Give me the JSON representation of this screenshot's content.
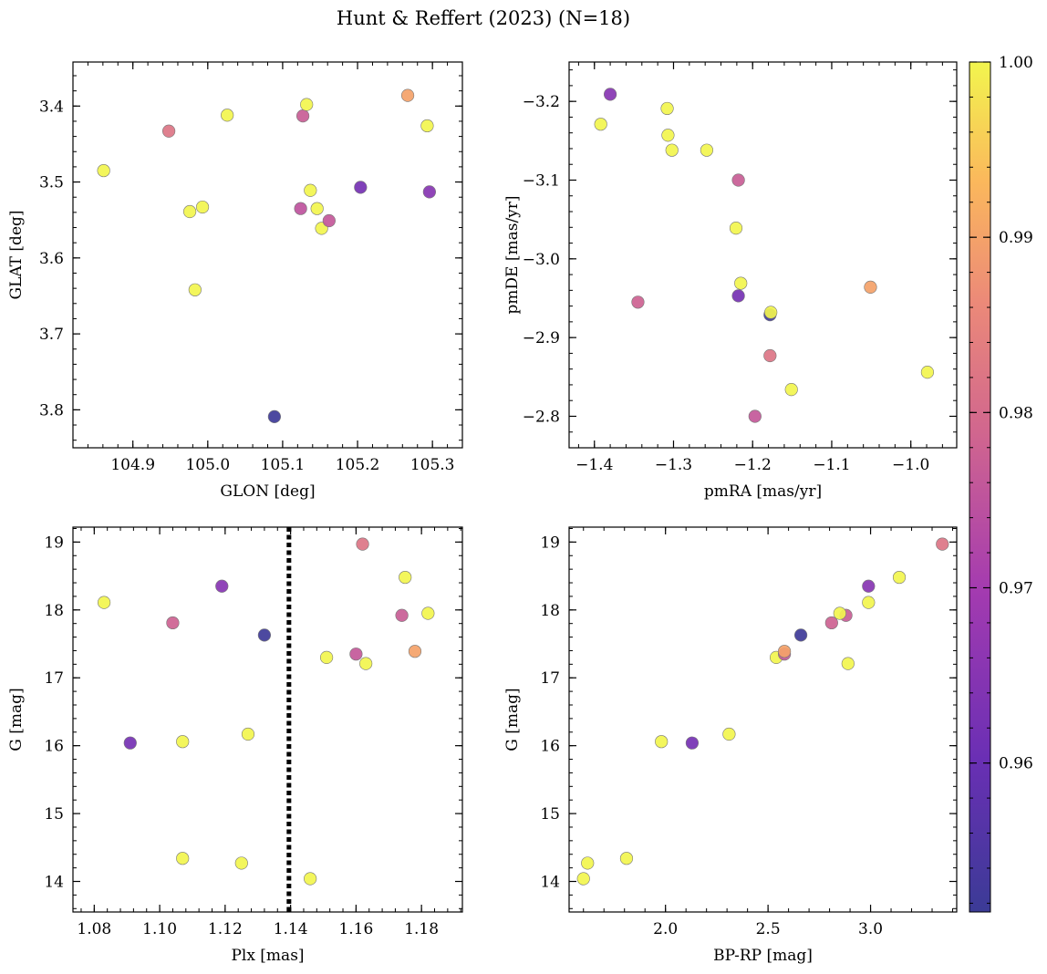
{
  "figure": {
    "title": "Hunt & Reffert (2023) (N=18)"
  },
  "colorbar": {
    "range": [
      0.9515,
      1.0
    ],
    "ticks": [
      0.96,
      0.97,
      0.98,
      0.99,
      1.0
    ],
    "tick_labels": [
      "0.96",
      "0.97",
      "0.98",
      "0.99",
      "1.00"
    ],
    "colormap": "plasma"
  },
  "chart_data": [
    {
      "type": "scatter",
      "xlabel": "GLON [deg]",
      "ylabel": "GLAT [deg]",
      "xlim": [
        104.82,
        105.34
      ],
      "ylim": [
        3.342,
        3.85
      ],
      "xticks": [
        104.9,
        105.0,
        105.1,
        105.2,
        105.3
      ],
      "xtick_labels": [
        "104.9",
        "105.0",
        "105.1",
        "105.2",
        "105.3"
      ],
      "yticks": [
        3.4,
        3.5,
        3.6,
        3.7,
        3.8
      ],
      "ytick_labels": [
        "3.4",
        "3.5",
        "3.6",
        "3.7",
        "3.8"
      ],
      "x_minor_step": 0.02,
      "y_minor_step": 0.02,
      "points": [
        {
          "x": 105.089,
          "y": 3.809,
          "c": 0.952
        },
        {
          "x": 104.983,
          "y": 3.642,
          "c": 1.0
        },
        {
          "x": 105.152,
          "y": 3.561,
          "c": 1.0
        },
        {
          "x": 105.162,
          "y": 3.551,
          "c": 0.976
        },
        {
          "x": 104.976,
          "y": 3.539,
          "c": 1.0
        },
        {
          "x": 105.146,
          "y": 3.535,
          "c": 1.0
        },
        {
          "x": 105.124,
          "y": 3.535,
          "c": 0.975
        },
        {
          "x": 104.993,
          "y": 3.533,
          "c": 1.0
        },
        {
          "x": 105.137,
          "y": 3.511,
          "c": 1.0
        },
        {
          "x": 105.296,
          "y": 3.513,
          "c": 0.965
        },
        {
          "x": 105.204,
          "y": 3.507,
          "c": 0.962
        },
        {
          "x": 104.861,
          "y": 3.485,
          "c": 1.0
        },
        {
          "x": 104.948,
          "y": 3.433,
          "c": 0.982
        },
        {
          "x": 105.293,
          "y": 3.426,
          "c": 1.0
        },
        {
          "x": 105.026,
          "y": 3.412,
          "c": 1.0
        },
        {
          "x": 105.127,
          "y": 3.413,
          "c": 0.977
        },
        {
          "x": 105.132,
          "y": 3.398,
          "c": 1.0
        },
        {
          "x": 105.267,
          "y": 3.386,
          "c": 0.99
        }
      ]
    },
    {
      "type": "scatter",
      "xlabel": "pmRA [mas/yr]",
      "ylabel": "pmDE [mas/yr]",
      "xlim": [
        -1.432,
        -0.942
      ],
      "ylim": [
        -3.25,
        -2.76
      ],
      "xticks": [
        -1.4,
        -1.3,
        -1.2,
        -1.1,
        -1.0
      ],
      "xtick_labels": [
        "−1.4",
        "−1.3",
        "−1.2",
        "−1.1",
        "−1.0"
      ],
      "yticks": [
        -3.2,
        -3.1,
        -3.0,
        -2.9,
        -2.8
      ],
      "ytick_labels": [
        "−3.2",
        "−3.1",
        "−3.0",
        "−2.9",
        "−2.8"
      ],
      "x_minor_step": 0.02,
      "y_minor_step": 0.02,
      "points": [
        {
          "x": -1.197,
          "y": -2.8,
          "c": 0.976
        },
        {
          "x": -1.151,
          "y": -2.834,
          "c": 1.0
        },
        {
          "x": -0.979,
          "y": -2.856,
          "c": 1.0
        },
        {
          "x": -1.178,
          "y": -2.877,
          "c": 0.982
        },
        {
          "x": -1.178,
          "y": -2.929,
          "c": 0.952
        },
        {
          "x": -1.177,
          "y": -2.932,
          "c": 1.0
        },
        {
          "x": -1.345,
          "y": -2.945,
          "c": 0.978
        },
        {
          "x": -1.218,
          "y": -2.953,
          "c": 0.962
        },
        {
          "x": -1.051,
          "y": -2.964,
          "c": 0.99
        },
        {
          "x": -1.215,
          "y": -2.969,
          "c": 1.0
        },
        {
          "x": -1.221,
          "y": -3.039,
          "c": 1.0
        },
        {
          "x": -1.218,
          "y": -3.1,
          "c": 0.977
        },
        {
          "x": -1.302,
          "y": -3.138,
          "c": 1.0
        },
        {
          "x": -1.258,
          "y": -3.138,
          "c": 1.0
        },
        {
          "x": -1.307,
          "y": -3.157,
          "c": 1.0
        },
        {
          "x": -1.392,
          "y": -3.171,
          "c": 1.0
        },
        {
          "x": -1.308,
          "y": -3.191,
          "c": 1.0
        },
        {
          "x": -1.38,
          "y": -3.209,
          "c": 0.965
        }
      ]
    },
    {
      "type": "scatter",
      "xlabel": "Plx [mas]",
      "ylabel": "G [mag]",
      "xlim": [
        1.0735,
        1.1925
      ],
      "ylim": [
        19.22,
        13.55
      ],
      "xticks": [
        1.08,
        1.1,
        1.12,
        1.14,
        1.16,
        1.18
      ],
      "xtick_labels": [
        "1.08",
        "1.10",
        "1.12",
        "1.14",
        "1.16",
        "1.18"
      ],
      "yticks": [
        14,
        15,
        16,
        17,
        18,
        19
      ],
      "ytick_labels": [
        "14",
        "15",
        "16",
        "17",
        "18",
        "19"
      ],
      "x_minor_step": 0.004,
      "y_minor_step": 0.2,
      "vline": {
        "x": 1.1395,
        "style": "dotted",
        "color": "#000000"
      },
      "points": [
        {
          "x": 1.146,
          "y": 14.04,
          "c": 1.0
        },
        {
          "x": 1.125,
          "y": 14.27,
          "c": 1.0
        },
        {
          "x": 1.107,
          "y": 14.34,
          "c": 1.0
        },
        {
          "x": 1.091,
          "y": 16.04,
          "c": 0.962
        },
        {
          "x": 1.107,
          "y": 16.06,
          "c": 1.0
        },
        {
          "x": 1.127,
          "y": 16.17,
          "c": 1.0
        },
        {
          "x": 1.163,
          "y": 17.21,
          "c": 1.0
        },
        {
          "x": 1.151,
          "y": 17.3,
          "c": 1.0
        },
        {
          "x": 1.16,
          "y": 17.35,
          "c": 0.976
        },
        {
          "x": 1.178,
          "y": 17.39,
          "c": 0.99
        },
        {
          "x": 1.132,
          "y": 17.63,
          "c": 0.952
        },
        {
          "x": 1.104,
          "y": 17.81,
          "c": 0.978
        },
        {
          "x": 1.174,
          "y": 17.92,
          "c": 0.977
        },
        {
          "x": 1.182,
          "y": 17.95,
          "c": 1.0
        },
        {
          "x": 1.083,
          "y": 18.11,
          "c": 1.0
        },
        {
          "x": 1.119,
          "y": 18.35,
          "c": 0.965
        },
        {
          "x": 1.175,
          "y": 18.48,
          "c": 1.0
        },
        {
          "x": 1.162,
          "y": 18.97,
          "c": 0.982
        }
      ]
    },
    {
      "type": "scatter",
      "xlabel": "BP-RP [mag]",
      "ylabel": "G [mag]",
      "xlim": [
        1.53,
        3.42
      ],
      "ylim": [
        19.22,
        13.55
      ],
      "xticks": [
        2.0,
        2.5,
        3.0
      ],
      "xtick_labels": [
        "2.0",
        "2.5",
        "3.0"
      ],
      "yticks": [
        14,
        15,
        16,
        17,
        18,
        19
      ],
      "ytick_labels": [
        "14",
        "15",
        "16",
        "17",
        "18",
        "19"
      ],
      "x_minor_step": 0.1,
      "y_minor_step": 0.2,
      "points": [
        {
          "x": 1.6,
          "y": 14.04,
          "c": 1.0
        },
        {
          "x": 1.62,
          "y": 14.27,
          "c": 1.0
        },
        {
          "x": 1.81,
          "y": 14.34,
          "c": 1.0
        },
        {
          "x": 2.13,
          "y": 16.04,
          "c": 0.962
        },
        {
          "x": 1.98,
          "y": 16.06,
          "c": 1.0
        },
        {
          "x": 2.31,
          "y": 16.17,
          "c": 1.0
        },
        {
          "x": 2.89,
          "y": 17.21,
          "c": 1.0
        },
        {
          "x": 2.54,
          "y": 17.3,
          "c": 1.0
        },
        {
          "x": 2.58,
          "y": 17.35,
          "c": 0.976
        },
        {
          "x": 2.58,
          "y": 17.39,
          "c": 0.99
        },
        {
          "x": 2.66,
          "y": 17.63,
          "c": 0.952
        },
        {
          "x": 2.81,
          "y": 17.81,
          "c": 0.978
        },
        {
          "x": 2.88,
          "y": 17.92,
          "c": 0.977
        },
        {
          "x": 2.85,
          "y": 17.95,
          "c": 1.0
        },
        {
          "x": 2.99,
          "y": 18.11,
          "c": 1.0
        },
        {
          "x": 2.99,
          "y": 18.35,
          "c": 0.965
        },
        {
          "x": 3.14,
          "y": 18.48,
          "c": 1.0
        },
        {
          "x": 3.35,
          "y": 18.97,
          "c": 0.982
        }
      ]
    }
  ]
}
